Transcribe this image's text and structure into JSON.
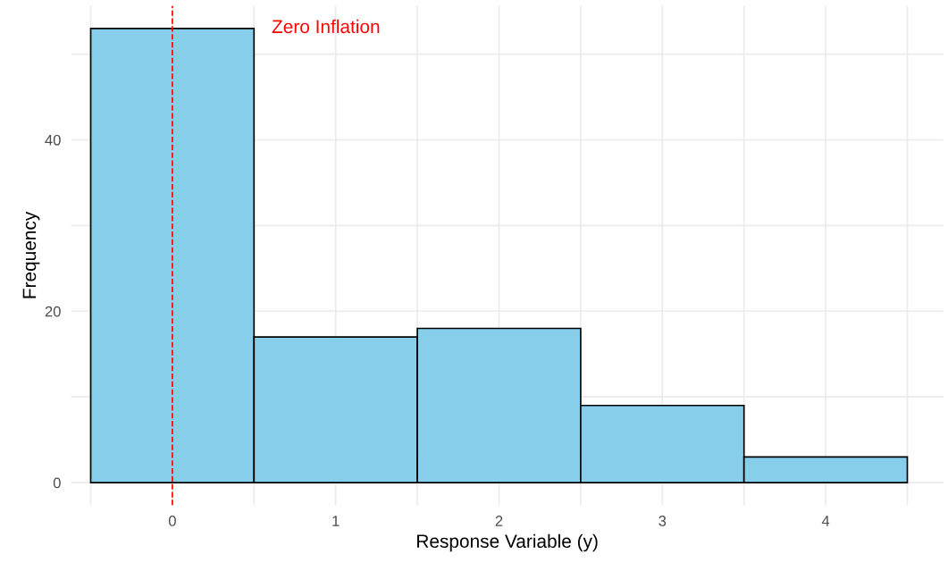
{
  "chart_data": {
    "type": "histogram",
    "xlabel": "Response Variable (y)",
    "ylabel": "Frequency",
    "bins": [
      -0.5,
      0.5,
      1.5,
      2.5,
      3.5,
      4.5
    ],
    "values": [
      53,
      17,
      18,
      9,
      3
    ],
    "color": "#87ceeb",
    "xlim": [
      -0.62,
      4.72
    ],
    "ylim": [
      -2.65,
      55.65
    ],
    "xticks": [
      {
        "value": -0.5,
        "label": null
      },
      0,
      {
        "value": 0.5,
        "label": null
      },
      1,
      {
        "value": 1.5,
        "label": null
      },
      2,
      {
        "value": 2.5,
        "label": null
      },
      3,
      {
        "value": 3.5,
        "label": null
      },
      4,
      {
        "value": 4.5,
        "label": null
      }
    ],
    "yticks": [
      {
        "value": 10,
        "label": null
      },
      0,
      20,
      {
        "value": 30,
        "label": null
      },
      40,
      {
        "value": 50,
        "label": null
      }
    ],
    "grid": true,
    "ref_lines": [
      {
        "axis": "x",
        "value": 0,
        "color": "#ff0000",
        "line_style": "dashed"
      }
    ],
    "annotations": [
      "Zero Inflation"
    ]
  }
}
